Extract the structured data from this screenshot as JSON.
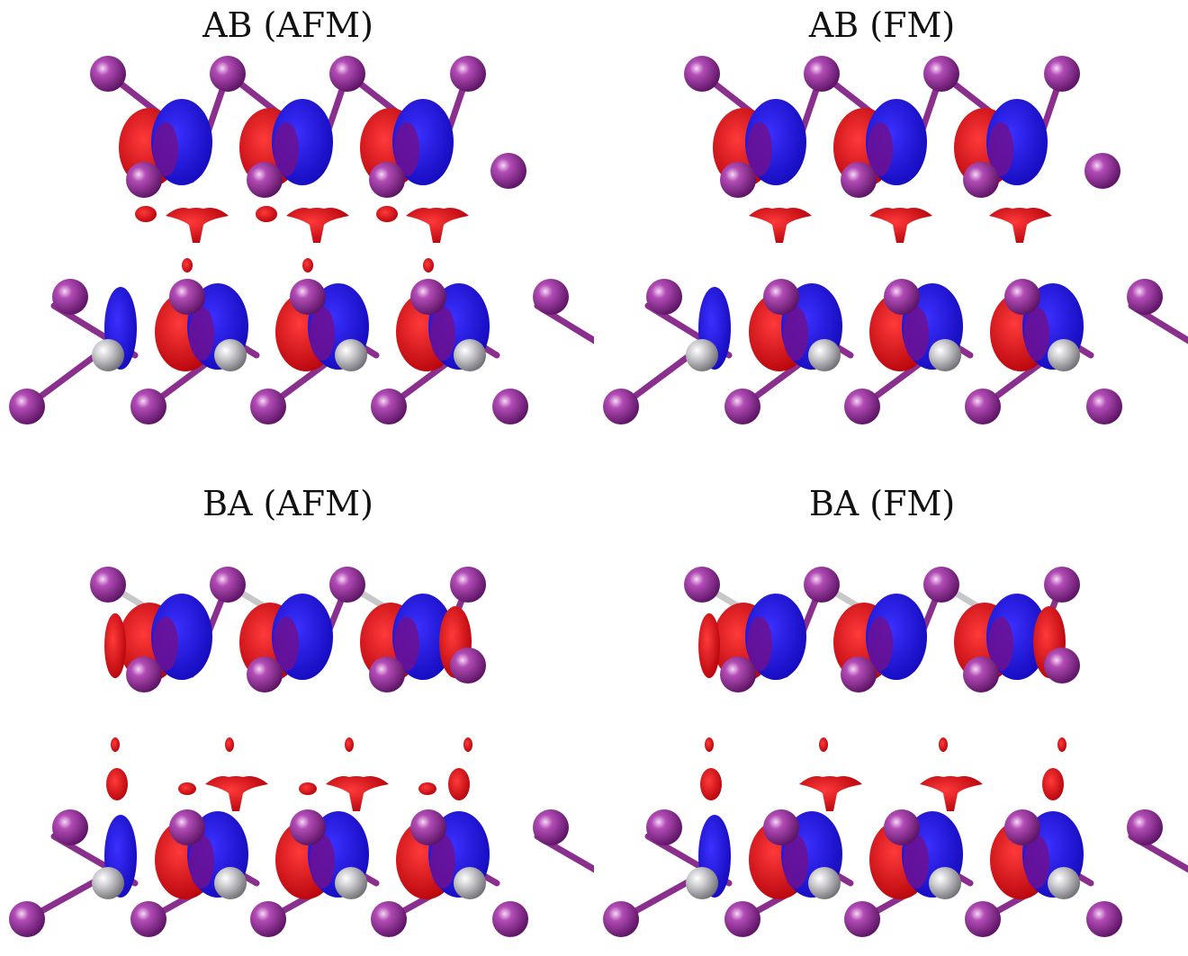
{
  "panels": [
    {
      "id": "ab-afm",
      "title": "AB (AFM)",
      "stacking": "AB",
      "magnetic": "AFM"
    },
    {
      "id": "ab-fm",
      "title": "AB (FM)",
      "stacking": "AB",
      "magnetic": "FM"
    },
    {
      "id": "ba-afm",
      "title": "BA (AFM)",
      "stacking": "BA",
      "magnetic": "AFM"
    },
    {
      "id": "ba-fm",
      "title": "BA (FM)",
      "stacking": "BA",
      "magnetic": "FM"
    }
  ],
  "colors": {
    "charge_accumulation": "#e8000a",
    "charge_depletion": "#1a10e6",
    "overlap": "#6f1090",
    "iodine_atom": "#8e2f96",
    "metal_atom": "#b8b8bc",
    "bond_purple": "#8a2f8e",
    "bond_gray": "#c8c8c8",
    "title_text": "#111111"
  }
}
